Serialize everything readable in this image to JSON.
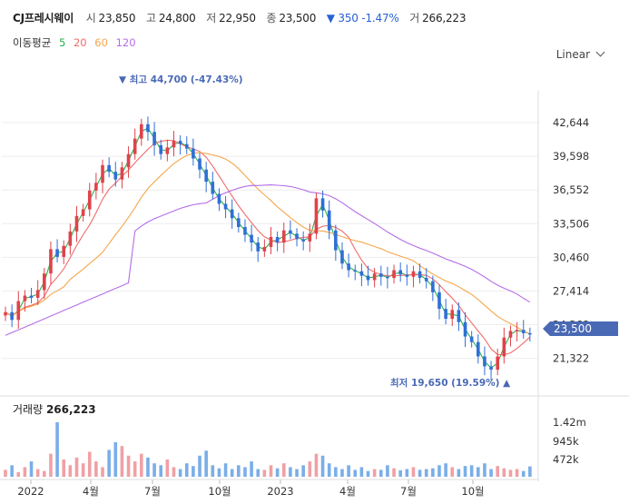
{
  "header": {
    "stock_name": "CJ프레시웨이",
    "open_label": "시",
    "open": "23,850",
    "high_label": "고",
    "high": "24,800",
    "low_label": "저",
    "low": "22,950",
    "close_label": "종",
    "close": "23,500",
    "change": "▼ 350",
    "change_pct": "-1.47%",
    "volume_label": "거",
    "volume": "266,223"
  },
  "ma_legend": {
    "title": "이동평균",
    "periods": [
      "5",
      "20",
      "60",
      "120"
    ]
  },
  "scale_selector": {
    "value": "Linear"
  },
  "annotations": {
    "max_label": "▼ 최고 44,700 (-47.43%)",
    "min_label": "최저 19,650 (19.59%) ▲"
  },
  "current_price_tag": "23,500",
  "volume_panel": {
    "title": "거래량",
    "value": "266,223"
  },
  "colors": {
    "up": "#e0424a",
    "down": "#2f6fd6",
    "ma5": "#2bb24c",
    "ma20": "#f06b6b",
    "ma60": "#f5a64c",
    "ma120": "#b46ee8",
    "vol_up": "#f0a0a5",
    "vol_down": "#7aaee8",
    "price_tag": "#4a69b5"
  },
  "chart_data": {
    "type": "candlestick",
    "price_axis": {
      "min": 19650,
      "max": 44700,
      "ticks": [
        "42,644",
        "39,598",
        "36,552",
        "33,506",
        "30,460",
        "27,414",
        "24,368",
        "21,322"
      ]
    },
    "volume_axis": {
      "ticks": [
        "1.42m",
        "945k",
        "472k"
      ]
    },
    "x_ticks": [
      "2022",
      "4월",
      "7월",
      "10월",
      "2023",
      "4월",
      "7월",
      "10월"
    ],
    "closes": [
      25500,
      24800,
      26500,
      27000,
      26800,
      27500,
      29000,
      31200,
      30500,
      31500,
      32800,
      34200,
      34800,
      36500,
      37200,
      38800,
      38200,
      37500,
      38600,
      39800,
      41200,
      42500,
      41800,
      40600,
      39800,
      40400,
      41000,
      40700,
      40300,
      39400,
      38400,
      37300,
      36200,
      35300,
      34800,
      34000,
      33200,
      32500,
      31800,
      31000,
      31400,
      32300,
      31800,
      32900,
      32600,
      32100,
      31900,
      32600,
      35800,
      34700,
      32900,
      31100,
      29900,
      29300,
      29200,
      28800,
      28400,
      29000,
      28700,
      28600,
      29300,
      28900,
      28700,
      29200,
      28600,
      28300,
      27300,
      25800,
      24900,
      25700,
      24600,
      23300,
      22800,
      21500,
      20600,
      20300,
      21500,
      23200,
      23800,
      23900,
      23600,
      23500
    ],
    "ohlc": [],
    "series": [
      {
        "name": "5",
        "role": "ma5"
      },
      {
        "name": "20",
        "role": "ma20"
      },
      {
        "name": "60",
        "role": "ma60"
      },
      {
        "name": "120",
        "role": "ma120"
      }
    ],
    "volumes": [
      0.18,
      0.3,
      0.12,
      0.25,
      0.4,
      0.2,
      0.15,
      0.6,
      1.42,
      0.45,
      0.3,
      0.5,
      0.35,
      0.65,
      0.4,
      0.25,
      0.7,
      0.9,
      0.8,
      0.55,
      0.4,
      0.6,
      0.5,
      0.35,
      0.3,
      0.45,
      0.25,
      0.2,
      0.35,
      0.28,
      0.55,
      0.68,
      0.3,
      0.22,
      0.35,
      0.2,
      0.3,
      0.25,
      0.4,
      0.2,
      0.18,
      0.3,
      0.22,
      0.35,
      0.25,
      0.2,
      0.3,
      0.4,
      0.6,
      0.55,
      0.35,
      0.25,
      0.2,
      0.3,
      0.18,
      0.25,
      0.15,
      0.2,
      0.18,
      0.3,
      0.22,
      0.17,
      0.2,
      0.25,
      0.18,
      0.2,
      0.22,
      0.3,
      0.35,
      0.25,
      0.2,
      0.28,
      0.3,
      0.25,
      0.35,
      0.2,
      0.28,
      0.22,
      0.18,
      0.2,
      0.15,
      0.27
    ]
  }
}
